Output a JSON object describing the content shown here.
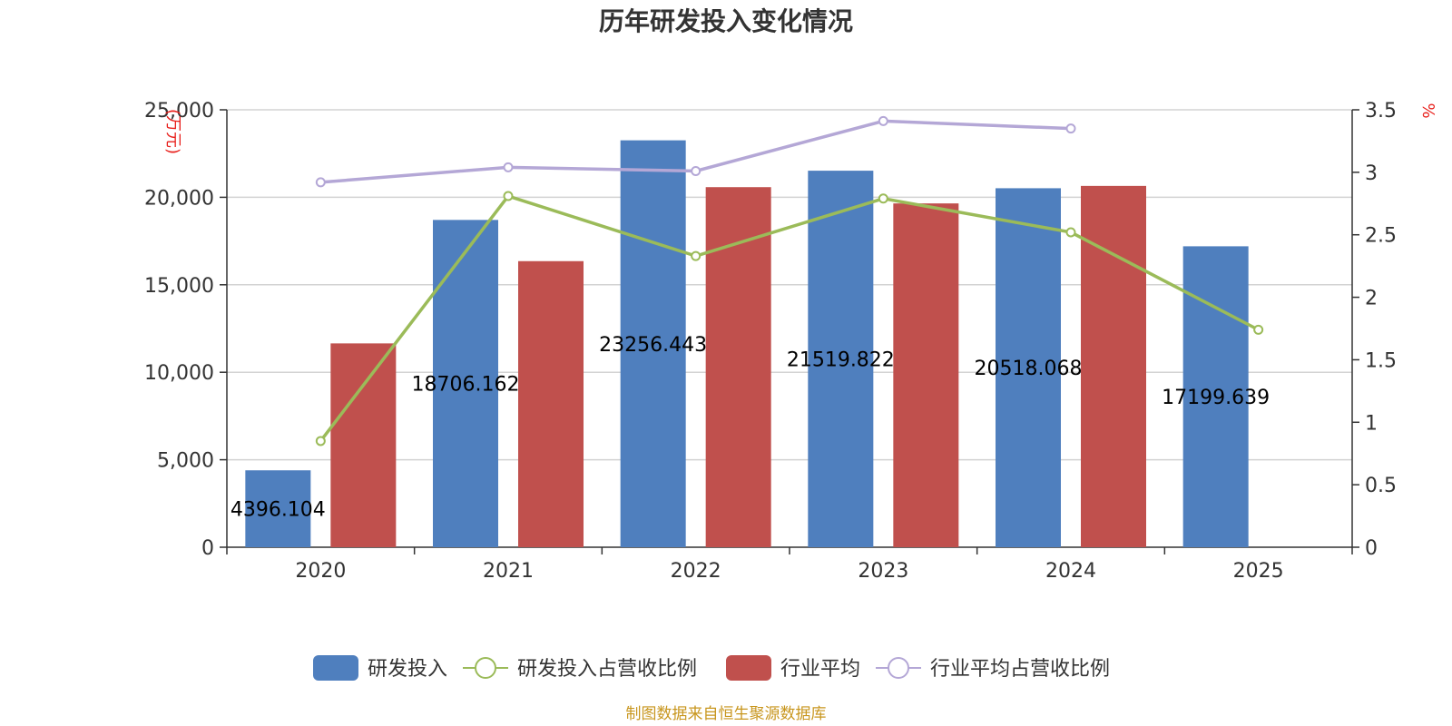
{
  "chart_data": {
    "type": "bar",
    "title": "历年研发投入变化情况",
    "categories": [
      "2020",
      "2021",
      "2022",
      "2023",
      "2024",
      "2025"
    ],
    "y_left": {
      "unit": "(万元)",
      "ticks": [
        "0",
        "5,000",
        "10,000",
        "15,000",
        "20,000",
        "25,000"
      ],
      "range": [
        0,
        25000
      ]
    },
    "y_right": {
      "unit": "%",
      "ticks": [
        "0",
        "0.5",
        "1",
        "1.5",
        "2",
        "2.5",
        "3",
        "3.5"
      ],
      "range": [
        0,
        3.5
      ]
    },
    "series": [
      {
        "name": "研发投入",
        "kind": "bar",
        "axis": "left",
        "color": "#4f7fbe",
        "values": [
          4396.104,
          18706.162,
          23256.443,
          21519.822,
          20518.068,
          17199.639
        ],
        "labels": [
          "4396.104",
          "18706.162",
          "23256.443",
          "21519.822",
          "20518.068",
          "17199.639"
        ]
      },
      {
        "name": "研发投入占营收比例",
        "kind": "line",
        "axis": "right",
        "color": "#9bbb59",
        "values": [
          0.85,
          2.81,
          2.33,
          2.79,
          2.52,
          1.74
        ]
      },
      {
        "name": "行业平均",
        "kind": "bar",
        "axis": "left",
        "color": "#c0504d",
        "values": [
          11650,
          16350,
          20580,
          19650,
          20650,
          null
        ]
      },
      {
        "name": "行业平均占营收比例",
        "kind": "line",
        "axis": "right",
        "color": "#b4a7d6",
        "values": [
          2.92,
          3.04,
          3.01,
          3.41,
          3.35,
          null
        ]
      }
    ],
    "grid": true,
    "legend_position": "bottom-center",
    "source": "制图数据来自恒生聚源数据库"
  }
}
